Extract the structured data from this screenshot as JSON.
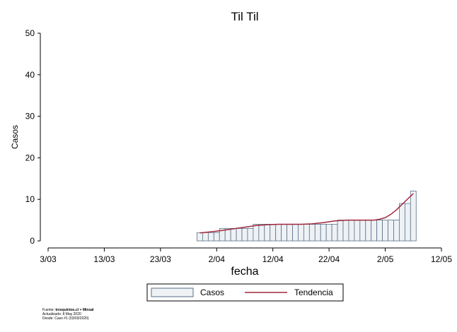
{
  "chart_data": {
    "type": "bar",
    "title": "Til Til",
    "xlabel": "fecha",
    "ylabel": "Casos",
    "ylim": [
      0,
      50
    ],
    "yticks": [
      0,
      10,
      20,
      30,
      40,
      50
    ],
    "x_start": "2020-03-03",
    "x_end": "2020-05-12",
    "xticks": [
      {
        "date": "2020-03-03",
        "label": "3/03"
      },
      {
        "date": "2020-03-13",
        "label": "13/03"
      },
      {
        "date": "2020-03-23",
        "label": "23/03"
      },
      {
        "date": "2020-04-02",
        "label": "2/04"
      },
      {
        "date": "2020-04-12",
        "label": "12/04"
      },
      {
        "date": "2020-04-22",
        "label": "22/04"
      },
      {
        "date": "2020-05-02",
        "label": "2/05"
      },
      {
        "date": "2020-05-12",
        "label": "12/05"
      }
    ],
    "series": [
      {
        "name": "Casos",
        "style": "bar",
        "color": "#eef2f5",
        "stroke": "#5a6f8a",
        "x": [
          "2020-03-30",
          "2020-03-31",
          "2020-04-01",
          "2020-04-02",
          "2020-04-03",
          "2020-04-04",
          "2020-04-05",
          "2020-04-06",
          "2020-04-07",
          "2020-04-08",
          "2020-04-09",
          "2020-04-10",
          "2020-04-11",
          "2020-04-12",
          "2020-04-13",
          "2020-04-14",
          "2020-04-15",
          "2020-04-16",
          "2020-04-17",
          "2020-04-18",
          "2020-04-19",
          "2020-04-20",
          "2020-04-21",
          "2020-04-22",
          "2020-04-23",
          "2020-04-24",
          "2020-04-25",
          "2020-04-26",
          "2020-04-27",
          "2020-04-28",
          "2020-04-29",
          "2020-04-30",
          "2020-05-01",
          "2020-05-02",
          "2020-05-03",
          "2020-05-04",
          "2020-05-05",
          "2020-05-06",
          "2020-05-07"
        ],
        "values": [
          2,
          2,
          2,
          2,
          3,
          3,
          3,
          3,
          3,
          3,
          4,
          4,
          4,
          4,
          4,
          4,
          4,
          4,
          4,
          4,
          4,
          4,
          4,
          4,
          4,
          5,
          5,
          5,
          5,
          5,
          5,
          5,
          5,
          5,
          5,
          5,
          9,
          9,
          12
        ]
      },
      {
        "name": "Tendencia",
        "style": "line",
        "color": "#a0283c",
        "x": [
          "2020-03-30",
          "2020-04-01",
          "2020-04-03",
          "2020-04-05",
          "2020-04-07",
          "2020-04-09",
          "2020-04-11",
          "2020-04-13",
          "2020-04-15",
          "2020-04-17",
          "2020-04-19",
          "2020-04-21",
          "2020-04-23",
          "2020-04-25",
          "2020-04-27",
          "2020-04-29",
          "2020-04-30",
          "2020-05-01",
          "2020-05-02",
          "2020-05-03",
          "2020-05-04",
          "2020-05-05",
          "2020-05-06",
          "2020-05-07"
        ],
        "values": [
          1.9,
          2.2,
          2.5,
          2.9,
          3.3,
          3.7,
          3.9,
          4.0,
          4.0,
          4.0,
          4.1,
          4.4,
          4.8,
          5.0,
          5.0,
          5.0,
          5.0,
          5.2,
          5.6,
          6.4,
          7.5,
          8.8,
          10.1,
          11.4
        ]
      }
    ],
    "legend": {
      "position": "bottom",
      "entries": [
        "Casos",
        "Tendencia"
      ]
    },
    "grid": false
  },
  "source": {
    "line1_prefix": "Fuente: ",
    "line1_bold": "tresquintos.cl + Minsal",
    "line2": "Actualizado: 8 May 2020",
    "line3": "Desde: Caso #1  (03/03/2020)"
  }
}
